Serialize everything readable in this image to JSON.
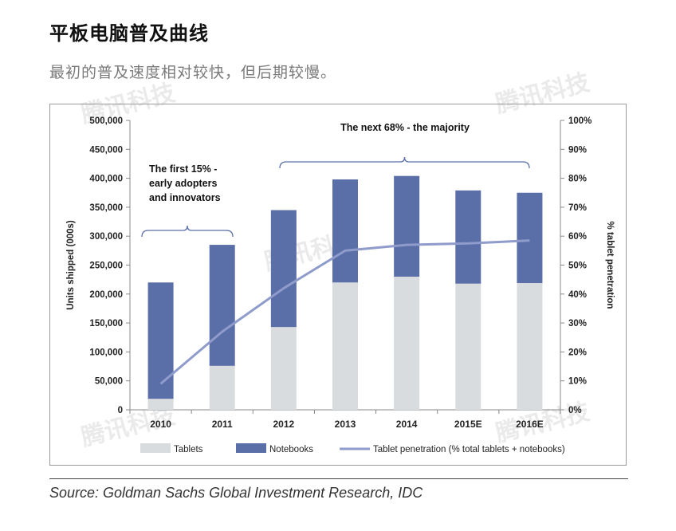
{
  "header": {
    "title": "平板电脑普及曲线",
    "subtitle": "最初的普及速度相对较快，但后期较慢。"
  },
  "source": "Source: Goldman Sachs Global Investment Research, IDC",
  "watermark": "腾讯科技",
  "chart_data": {
    "type": "bar",
    "stacked": true,
    "categories": [
      "2010",
      "2011",
      "2012",
      "2013",
      "2014",
      "2015E",
      "2016E"
    ],
    "series": [
      {
        "name": "Tablets",
        "values": [
          19000,
          76000,
          143000,
          220000,
          230000,
          218000,
          219000
        ],
        "color": "#d9dcdf"
      },
      {
        "name": "Notebooks",
        "values": [
          201000,
          209000,
          202000,
          178000,
          174000,
          161000,
          156000
        ],
        "color": "#5a6ea8"
      }
    ],
    "line_series": {
      "name": "Tablet penetration (% total tablets + notebooks)",
      "values": [
        9,
        27,
        42,
        55,
        57,
        57.5,
        58.5
      ],
      "axis": "right",
      "color": "#8f9bcb"
    },
    "ylabel": "Units shipped (000s)",
    "y2label": "% tablet penetration",
    "ylim": [
      0,
      500000
    ],
    "y2lim": [
      0,
      100
    ],
    "yticks": [
      "0",
      "50,000",
      "100,000",
      "150,000",
      "200,000",
      "250,000",
      "300,000",
      "350,000",
      "400,000",
      "450,000",
      "500,000"
    ],
    "y2ticks": [
      "0%",
      "10%",
      "20%",
      "30%",
      "40%",
      "50%",
      "60%",
      "70%",
      "80%",
      "90%",
      "100%"
    ],
    "annotations": [
      {
        "text": [
          "The first 15% -",
          "early adopters",
          "and innovators"
        ],
        "from": "2010",
        "to": "2011"
      },
      {
        "text": [
          "The next 68% - the majority"
        ],
        "from": "2012",
        "to": "2016E"
      }
    ],
    "legend": [
      "Tablets",
      "Notebooks",
      "Tablet penetration (% total tablets + notebooks)"
    ],
    "legend_position": "bottom"
  }
}
